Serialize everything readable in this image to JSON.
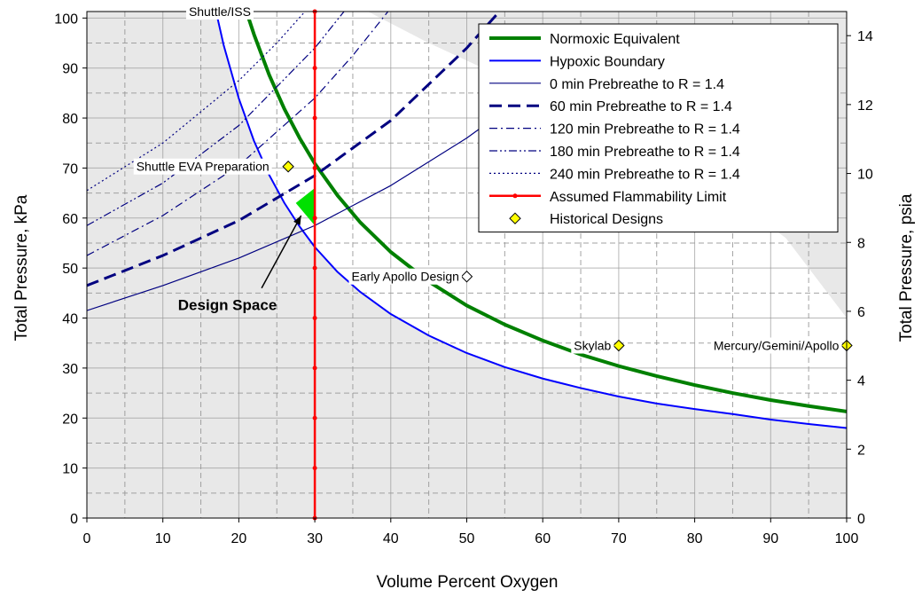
{
  "chart_data": {
    "type": "line",
    "xlabel": "Volume Percent Oxygen",
    "ylabel": "Total Pressure, kPa",
    "y2label": "Total Pressure, psia",
    "xlim": [
      0,
      100
    ],
    "ylim": [
      0,
      101.3
    ],
    "y2lim": [
      0,
      14.7
    ],
    "x_ticks": [
      0,
      10,
      20,
      30,
      40,
      50,
      60,
      70,
      80,
      90,
      100
    ],
    "y_ticks": [
      0,
      10,
      20,
      30,
      40,
      50,
      60,
      70,
      80,
      90,
      100
    ],
    "y2_ticks": [
      0,
      2,
      4,
      6,
      8,
      10,
      12,
      14
    ],
    "grid": true,
    "legend_position": "top-right",
    "series": [
      {
        "name": "Normoxic Equivalent",
        "style": "thick-solid",
        "color": "#008000",
        "x": [
          21,
          22,
          24,
          26,
          28,
          30,
          33,
          36,
          40,
          45,
          50,
          55,
          60,
          65,
          70,
          75,
          80,
          85,
          90,
          95,
          100
        ],
        "y": [
          101.3,
          96.7,
          88.6,
          81.8,
          76,
          70.9,
          64.5,
          59.1,
          53.2,
          47.3,
          42.5,
          38.7,
          35.5,
          32.7,
          30.4,
          28.4,
          26.6,
          25,
          23.6,
          22.4,
          21.3
        ]
      },
      {
        "name": "Hypoxic Boundary",
        "style": "solid",
        "color": "#0000ff",
        "x": [
          17,
          18,
          20,
          22,
          24,
          26,
          28,
          30,
          33,
          36,
          40,
          45,
          50,
          55,
          60,
          65,
          70,
          75,
          80,
          85,
          90,
          95,
          100
        ],
        "y": [
          101.3,
          94.6,
          83.9,
          75.4,
          68.6,
          63,
          58.3,
          54.2,
          49.2,
          45.2,
          40.8,
          36.5,
          33,
          30.2,
          27.9,
          26,
          24.3,
          22.9,
          21.8,
          20.8,
          19.7,
          18.8,
          18
        ]
      },
      {
        "name": "0 min Prebreathe to R = 1.4",
        "style": "thin-solid",
        "color": "#000080",
        "x": [
          0,
          10,
          20,
          30,
          40,
          50,
          55,
          60
        ],
        "y": [
          41.5,
          46.5,
          52,
          58.5,
          66.5,
          76,
          81.5,
          89
        ]
      },
      {
        "name": "60 min Prebreathe to R = 1.4",
        "style": "long-dash",
        "color": "#000080",
        "x": [
          0,
          10,
          20,
          30,
          40,
          50,
          55,
          59
        ],
        "y": [
          46.5,
          52.5,
          59.5,
          68.5,
          79.5,
          94,
          102.5,
          111
        ]
      },
      {
        "name": "120 min Prebreathe to R = 1.4",
        "style": "dash-dot",
        "color": "#000080",
        "x": [
          0,
          10,
          20,
          30,
          35,
          40
        ],
        "y": [
          52.5,
          60.5,
          70.5,
          84,
          92.5,
          102
        ]
      },
      {
        "name": "180 min Prebreathe to R = 1.4",
        "style": "dash-dot-dot",
        "color": "#000080",
        "x": [
          0,
          10,
          20,
          30,
          35
        ],
        "y": [
          58.5,
          67,
          78.5,
          94,
          103.5
        ]
      },
      {
        "name": "240 min Prebreathe to R = 1.4",
        "style": "dotted",
        "color": "#000080",
        "x": [
          0,
          10,
          20,
          25,
          30
        ],
        "y": [
          65.5,
          75,
          87.5,
          95,
          103.5
        ]
      },
      {
        "name": "Assumed Flammability Limit",
        "style": "solid-markers",
        "color": "#ff0000",
        "x": [
          30,
          30,
          30,
          30,
          30,
          30,
          30,
          30,
          30,
          30,
          30
        ],
        "y": [
          0,
          10,
          20,
          30,
          40,
          50,
          60,
          70,
          80,
          90,
          101.3
        ]
      },
      {
        "name": "Historical Designs",
        "style": "diamond-markers",
        "color": "#ffff00",
        "x": [
          21,
          26.5,
          50,
          70,
          100
        ],
        "y": [
          101.3,
          70.3,
          48.3,
          34.5,
          34.5
        ]
      }
    ],
    "annotations": [
      {
        "text": "Shuttle/ISS"
      },
      {
        "text": "Shuttle EVA Preparation"
      },
      {
        "text": "Early Apollo Design"
      },
      {
        "text": "Skylab"
      },
      {
        "text": "Mercury/Gemini/Apollo"
      },
      {
        "text": "Design Space"
      }
    ],
    "design_space": {
      "x": [
        27.5,
        30,
        30
      ],
      "y": [
        63,
        66,
        58.5
      ],
      "color": "#00e000"
    },
    "colors": {
      "shade": "#e8e8e8",
      "grid": "#999999"
    }
  }
}
